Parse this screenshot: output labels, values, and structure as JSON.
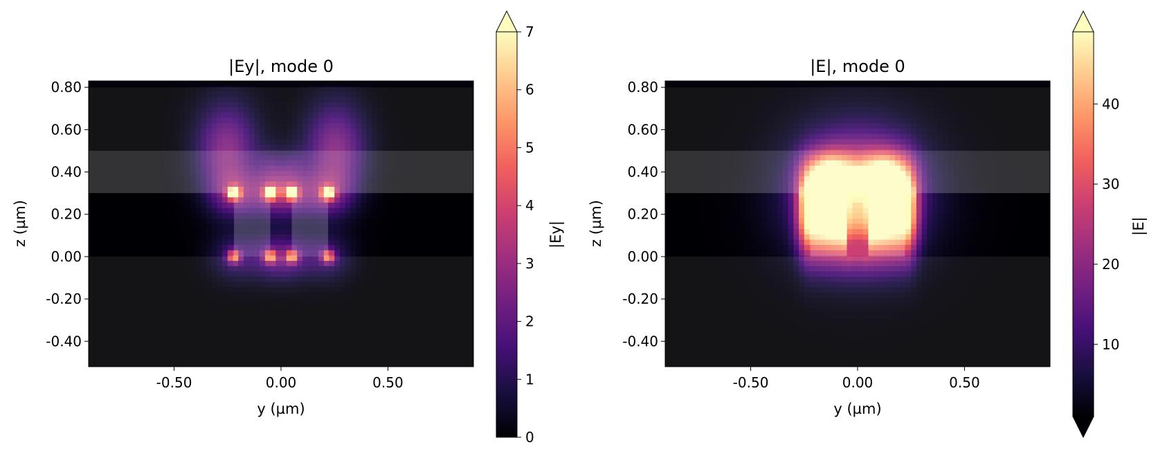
{
  "chart_data": [
    {
      "type": "heatmap",
      "title": "|Ey|, mode 0",
      "xlabel": "y (µm)",
      "ylabel": "z (µm)",
      "xlim": [
        -0.9,
        0.9
      ],
      "ylim": [
        -0.52,
        0.83
      ],
      "xticks": [
        -0.5,
        0.0,
        0.5
      ],
      "xtick_labels": [
        "-0.50",
        "0.00",
        "0.50"
      ],
      "yticks": [
        -0.4,
        -0.2,
        0.0,
        0.2,
        0.4,
        0.6,
        0.8
      ],
      "ytick_labels": [
        "-0.40",
        "-0.20",
        "0.00",
        "0.20",
        "0.40",
        "0.60",
        "0.80"
      ],
      "colormap": "magma",
      "colorbar": {
        "label": "|Ey|",
        "min": 0,
        "max": 7,
        "ticks": [
          0,
          1,
          2,
          3,
          4,
          5,
          6,
          7
        ],
        "tick_labels": [
          "0",
          "1",
          "2",
          "3",
          "4",
          "5",
          "6",
          "7"
        ],
        "extend": "max"
      },
      "field": "ey",
      "grid": false
    },
    {
      "type": "heatmap",
      "title": "|E|, mode 0",
      "xlabel": "y (µm)",
      "ylabel": "z (µm)",
      "xlim": [
        -0.9,
        0.9
      ],
      "ylim": [
        -0.52,
        0.83
      ],
      "xticks": [
        -0.5,
        0.0,
        0.5
      ],
      "xtick_labels": [
        "-0.50",
        "0.00",
        "0.50"
      ],
      "yticks": [
        -0.4,
        -0.2,
        0.0,
        0.2,
        0.4,
        0.6,
        0.8
      ],
      "ytick_labels": [
        "-0.40",
        "-0.20",
        "0.00",
        "0.20",
        "0.40",
        "0.60",
        "0.80"
      ],
      "colormap": "magma",
      "colorbar": {
        "label": "|E|",
        "min": 1,
        "max": 49,
        "ticks": [
          10,
          20,
          30,
          40
        ],
        "tick_labels": [
          "10",
          "20",
          "30",
          "40"
        ],
        "extend": "both"
      },
      "field": "eabs",
      "grid": false
    }
  ],
  "structure": {
    "substrate_top_z": 0.0,
    "cladding_z": [
      0.3,
      0.5
    ],
    "top_z": 0.8,
    "ridges_y": [
      [
        -0.22,
        -0.05
      ],
      [
        0.05,
        0.22
      ]
    ],
    "ridge_z": [
      0.0,
      0.3
    ]
  },
  "colors": {
    "magma_stops": [
      "#000004",
      "#180f3e",
      "#451077",
      "#721f81",
      "#9f2f7f",
      "#cd4071",
      "#f1605d",
      "#fd9567",
      "#feca8d",
      "#fcfdbf"
    ],
    "overlay": "#ffffff",
    "axis": "#000000",
    "background": "#ffffff"
  }
}
